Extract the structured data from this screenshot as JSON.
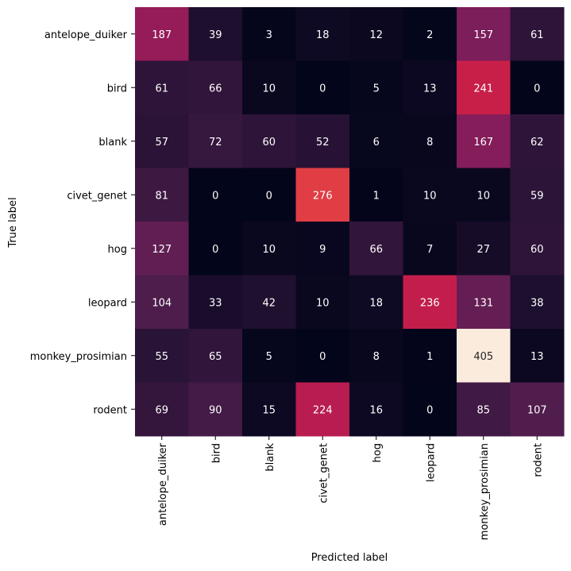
{
  "chart_data": {
    "type": "heatmap",
    "title": "",
    "xlabel": "Predicted label",
    "ylabel": "True label",
    "x_categories": [
      "antelope_duiker",
      "bird",
      "blank",
      "civet_genet",
      "hog",
      "leopard",
      "monkey_prosimian",
      "rodent"
    ],
    "y_categories": [
      "antelope_duiker",
      "bird",
      "blank",
      "civet_genet",
      "hog",
      "leopard",
      "monkey_prosimian",
      "rodent"
    ],
    "values": [
      [
        187,
        39,
        3,
        18,
        12,
        2,
        157,
        61
      ],
      [
        61,
        66,
        10,
        0,
        5,
        13,
        241,
        0
      ],
      [
        57,
        72,
        60,
        52,
        6,
        8,
        167,
        62
      ],
      [
        81,
        0,
        0,
        276,
        1,
        10,
        10,
        59
      ],
      [
        127,
        0,
        10,
        9,
        66,
        7,
        27,
        60
      ],
      [
        104,
        33,
        42,
        10,
        18,
        236,
        131,
        38
      ],
      [
        55,
        65,
        5,
        0,
        8,
        1,
        405,
        13
      ],
      [
        69,
        90,
        15,
        224,
        16,
        0,
        85,
        107
      ]
    ],
    "color_range": [
      0,
      405
    ],
    "colormap": "rocket",
    "colorbar": false
  }
}
